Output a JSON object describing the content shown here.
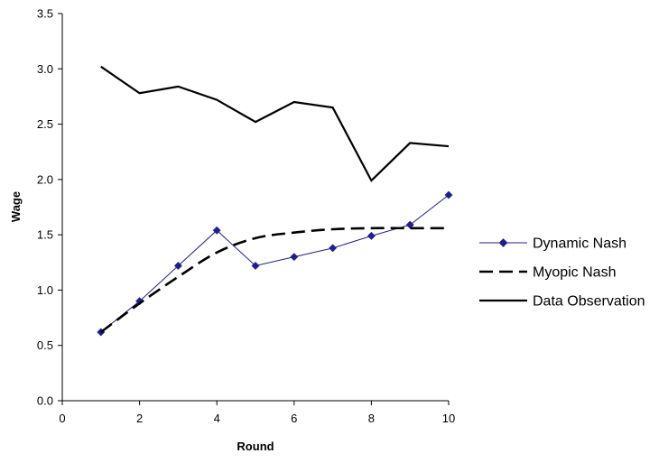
{
  "chart_data": {
    "type": "line",
    "xlabel": "Round",
    "ylabel": "Wage",
    "xlim": [
      0,
      10
    ],
    "ylim": [
      0,
      3.5
    ],
    "x_ticks": [
      "0",
      "2",
      "4",
      "6",
      "8",
      "10"
    ],
    "y_ticks": [
      "0.0",
      "0.5",
      "1.0",
      "1.5",
      "2.0",
      "2.5",
      "3.0",
      "3.5"
    ],
    "grid": false,
    "legend_position": "right",
    "series": [
      {
        "name": "Dynamic Nash",
        "style": "solid-with-diamond-markers",
        "color": "#1f1f8f",
        "x": [
          1,
          2,
          3,
          4,
          5,
          6,
          7,
          8,
          9,
          10
        ],
        "y": [
          0.62,
          0.9,
          1.22,
          1.54,
          1.22,
          1.3,
          1.38,
          1.49,
          1.59,
          1.86
        ]
      },
      {
        "name": "Myopic Nash",
        "style": "dashed",
        "color": "#000000",
        "x": [
          1,
          2,
          3,
          4,
          5,
          6,
          7,
          8,
          9,
          10
        ],
        "y": [
          0.62,
          0.88,
          1.12,
          1.34,
          1.47,
          1.52,
          1.55,
          1.56,
          1.56,
          1.56
        ]
      },
      {
        "name": "Data Observation",
        "style": "solid",
        "color": "#000000",
        "x": [
          1,
          2,
          3,
          4,
          5,
          6,
          7,
          8,
          9,
          10
        ],
        "y": [
          3.02,
          2.78,
          2.84,
          2.72,
          2.52,
          2.7,
          2.65,
          1.99,
          2.33,
          2.3
        ]
      }
    ]
  }
}
